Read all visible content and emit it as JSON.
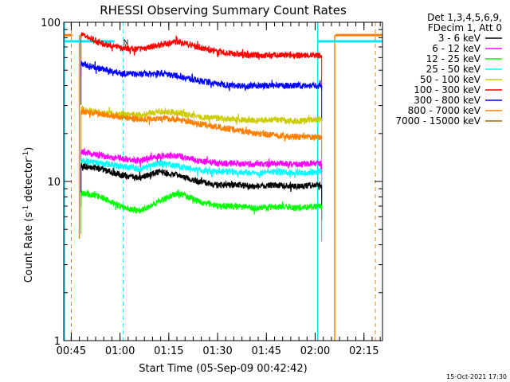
{
  "chart_data": {
    "type": "line",
    "title": "RHESSI Observing Summary Count Rates",
    "xlabel": "Start Time (05-Sep-09 00:42:42)",
    "ylabel_main": "Count Rate (s",
    "ylabel_sup1": "-1",
    "ylabel_mid": " detector",
    "ylabel_sup2": "-1",
    "ylabel_end": ")",
    "y_scale": "log",
    "ylim": [
      1,
      100
    ],
    "xlim_minutes": [
      42.7,
      140.7
    ],
    "x_ticks": [
      {
        "minute": 45,
        "label": "00:45"
      },
      {
        "minute": 60,
        "label": "01:00"
      },
      {
        "minute": 75,
        "label": "01:15"
      },
      {
        "minute": 90,
        "label": "01:30"
      },
      {
        "minute": 105,
        "label": "01:45"
      },
      {
        "minute": 120,
        "label": "02:00"
      },
      {
        "minute": 135,
        "label": "02:15"
      }
    ],
    "y_ticks": [
      {
        "value": 1,
        "label": "1"
      },
      {
        "value": 10,
        "label": "10"
      },
      {
        "value": 100,
        "label": "100"
      }
    ],
    "legend_header": [
      "Det 1,3,4,5,6,9,",
      "FDecim 1, Att 0"
    ],
    "legend_placement": "outside-right",
    "series": [
      {
        "name": "3 - 6 keV",
        "color": "#000000",
        "x": [
          48,
          54,
          60,
          66,
          72,
          78,
          84,
          90,
          96,
          102,
          108,
          114,
          120,
          122
        ],
        "y": [
          12.5,
          12,
          11,
          10.5,
          11.5,
          11,
          10,
          9.5,
          9.5,
          9.3,
          9.5,
          9.3,
          9.5,
          9.5
        ]
      },
      {
        "name": "6 - 12 keV",
        "color": "#ff00ff",
        "x": [
          48,
          54,
          60,
          66,
          72,
          78,
          84,
          90,
          96,
          102,
          108,
          114,
          120,
          122
        ],
        "y": [
          15.5,
          14.5,
          14,
          13.5,
          14.5,
          14.5,
          13.5,
          13,
          13,
          12.8,
          13,
          12.8,
          13,
          13
        ]
      },
      {
        "name": "12 - 25 keV",
        "color": "#00ff00",
        "x": [
          48,
          54,
          60,
          66,
          72,
          78,
          84,
          90,
          96,
          102,
          108,
          114,
          120,
          122
        ],
        "y": [
          8.5,
          8,
          7,
          6.5,
          7.5,
          8.5,
          7.5,
          7,
          7,
          6.8,
          7,
          6.8,
          7,
          7
        ]
      },
      {
        "name": "25 - 50 keV",
        "color": "#00ffff",
        "x": [
          48,
          54,
          60,
          66,
          72,
          78,
          84,
          90,
          96,
          102,
          108,
          114,
          120,
          122
        ],
        "y": [
          13.5,
          13,
          12.5,
          12,
          13,
          12.5,
          11.8,
          11.5,
          11.5,
          11.3,
          11.5,
          11.3,
          11.5,
          11.5
        ]
      },
      {
        "name": "50 - 100 keV",
        "color": "#cccc00",
        "x": [
          48,
          54,
          60,
          66,
          72,
          78,
          84,
          90,
          96,
          102,
          108,
          114,
          120,
          122
        ],
        "y": [
          28.5,
          27,
          26.5,
          26,
          27.5,
          27,
          25.5,
          25,
          24.5,
          24,
          24.5,
          24,
          24.5,
          24.5
        ]
      },
      {
        "name": "100 - 300 keV",
        "color": "#ff0000",
        "x": [
          48,
          54,
          60,
          66,
          72,
          78,
          84,
          90,
          96,
          102,
          108,
          114,
          120,
          122
        ],
        "y": [
          84,
          74,
          69,
          68,
          72,
          76,
          70,
          65,
          63,
          62,
          62,
          62,
          62,
          62
        ]
      },
      {
        "name": "300 - 800 keV",
        "color": "#0000ff",
        "x": [
          48,
          54,
          60,
          66,
          72,
          78,
          84,
          90,
          96,
          102,
          108,
          114,
          120,
          122
        ],
        "y": [
          55,
          51,
          48,
          47,
          48,
          46,
          43,
          41,
          40,
          40,
          40,
          40,
          40,
          40
        ]
      },
      {
        "name": "800 - 7000 keV",
        "color": "#ff8000",
        "x": [
          48,
          54,
          60,
          66,
          72,
          78,
          84,
          90,
          96,
          102,
          108,
          114,
          120,
          122
        ],
        "y": [
          27.5,
          26.5,
          25.5,
          24.5,
          25,
          24.5,
          23,
          22,
          21,
          20,
          19.5,
          19,
          19,
          19
        ]
      },
      {
        "name": "7000 - 15000 keV",
        "color": "#a06000",
        "x": [],
        "y": []
      }
    ],
    "markers": {
      "cyan_solid_minutes": [
        42.9,
        120.8
      ],
      "cyan_dashed_minutes": [
        61
      ],
      "orange_solid_minutes": [
        47,
        126
      ],
      "orange_dashed_minutes": [
        47,
        138.5
      ],
      "cyan_bars": [
        {
          "from": 42.7,
          "to": 58.3,
          "value": 76
        },
        {
          "from": 121,
          "to": 140.7,
          "value": 76
        }
      ],
      "orange_bars": [
        {
          "from": 42.7,
          "to": 45.3,
          "value": 83
        },
        {
          "from": 126.2,
          "to": 140.7,
          "value": 83
        }
      ],
      "flag_label": "N"
    },
    "timestamp": "15-Oct-2021 17:30"
  }
}
